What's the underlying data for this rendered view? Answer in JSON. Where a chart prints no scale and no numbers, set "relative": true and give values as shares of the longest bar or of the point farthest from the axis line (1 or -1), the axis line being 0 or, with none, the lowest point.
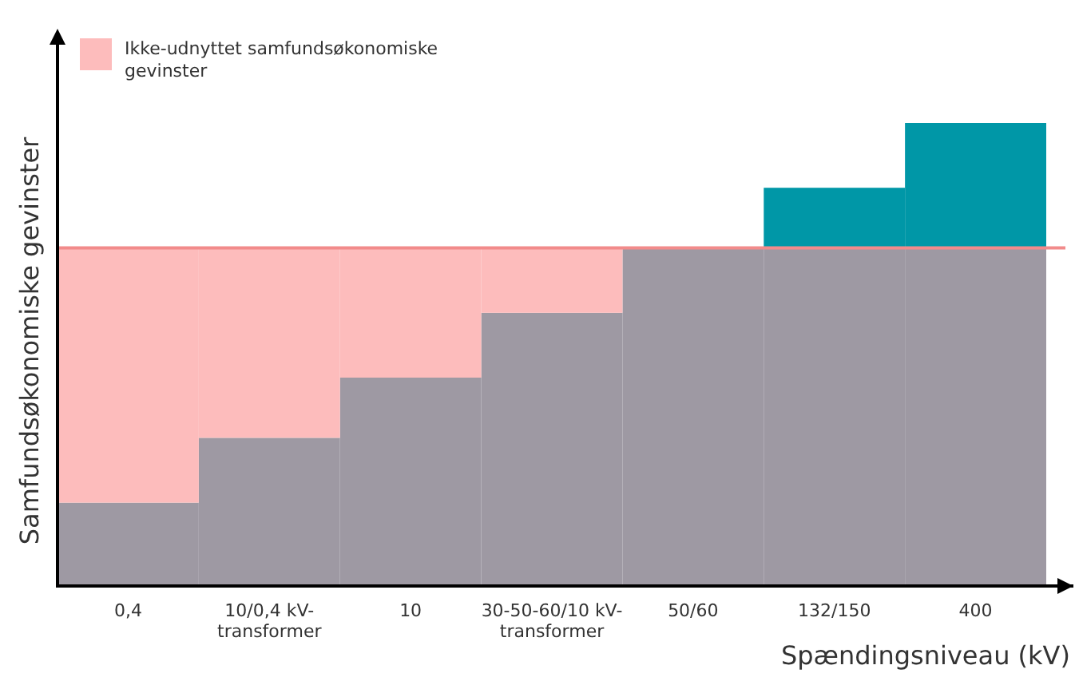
{
  "chart_data": {
    "type": "bar",
    "stacked": true,
    "relative": true,
    "xlabel": "Spændingsniveau (kV)",
    "ylabel": "Samfundsøkonomiske gevinster",
    "categories": [
      "0,4",
      "10/0,4 kV-\ntransformer",
      "10",
      "30-50-60/10 kV-\ntransformer",
      "50/60",
      "132/150",
      "400"
    ],
    "series": [
      {
        "color": "#9e99a3",
        "values": [
          0.18,
          0.32,
          0.45,
          0.59,
          0.73,
          0.73,
          0.73
        ]
      },
      {
        "name": "Ikke-udnyttet samfundsøkonomiske gevinster",
        "color": "#fdbcbc",
        "values": [
          0.55,
          0.41,
          0.28,
          0.14,
          0,
          0,
          0
        ]
      },
      {
        "color": "#0097a7",
        "values": [
          0,
          0,
          0,
          0,
          0,
          0.13,
          0.27
        ]
      }
    ],
    "ref_lines": [
      {
        "axis": "y",
        "value": 0.73,
        "color": "#f28b8b"
      }
    ],
    "legend": "top left"
  }
}
